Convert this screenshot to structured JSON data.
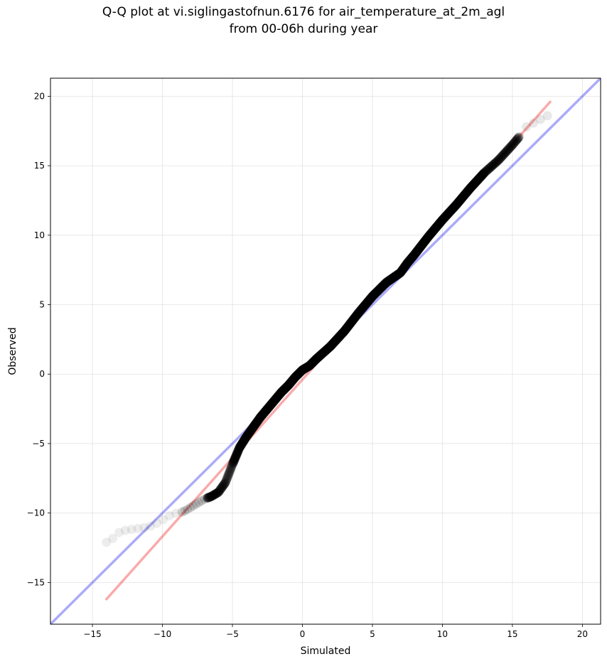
{
  "chart_data": {
    "type": "scatter",
    "title_line1": "Q-Q plot at vi.siglingastofnun.6176 for air_temperature_at_2m_agl",
    "title_line2": "from 00-06h during year",
    "xlabel": "Simulated",
    "ylabel": "Observed",
    "xlim": [
      -18,
      21.3
    ],
    "ylim": [
      -18,
      21.3
    ],
    "xticks": [
      -15,
      -10,
      -5,
      0,
      5,
      10,
      15,
      20
    ],
    "yticks": [
      -15,
      -10,
      -5,
      0,
      5,
      10,
      15,
      20
    ],
    "xtick_labels": [
      "−15",
      "−10",
      "−5",
      "0",
      "5",
      "10",
      "15",
      "20"
    ],
    "ytick_labels": [
      "−15",
      "−10",
      "−5",
      "0",
      "5",
      "10",
      "15",
      "20"
    ],
    "grid": true,
    "reference_line": {
      "slope": 1,
      "intercept": 0,
      "color": "#0000ee"
    },
    "fit_line": {
      "x": [
        -14,
        17.7
      ],
      "y": [
        -16.2,
        19.6
      ],
      "color": "#ee0000"
    },
    "quantile_curve": {
      "color": "#000000",
      "x": [
        -14,
        -13.5,
        -13,
        -11,
        -10.5,
        -10,
        -9.5,
        -9,
        -8.5,
        -8,
        -7.5,
        -7,
        -6.5,
        -6,
        -5.5,
        -5,
        -4.5,
        -4,
        -3.5,
        -3,
        -2.5,
        -2,
        -1.5,
        -1,
        -0.5,
        0,
        0.5,
        1,
        2,
        3,
        4,
        5,
        6,
        7,
        7.5,
        8,
        9,
        10,
        11,
        12,
        13,
        14,
        15,
        15.5,
        16,
        17.5
      ],
      "y": [
        -12.1,
        -11.8,
        -11.3,
        -11,
        -10.8,
        -10.5,
        -10.2,
        -10,
        -9.9,
        -9.6,
        -9.3,
        -9,
        -8.8,
        -8.5,
        -7.8,
        -6.5,
        -5.3,
        -4.5,
        -3.8,
        -3.1,
        -2.5,
        -1.9,
        -1.3,
        -0.8,
        -0.2,
        0.3,
        0.6,
        1.1,
        2.0,
        3.1,
        4.4,
        5.6,
        6.6,
        7.3,
        8.0,
        8.6,
        9.9,
        11.1,
        12.2,
        13.4,
        14.5,
        15.4,
        16.5,
        17.1,
        17.8,
        18.6
      ]
    }
  }
}
